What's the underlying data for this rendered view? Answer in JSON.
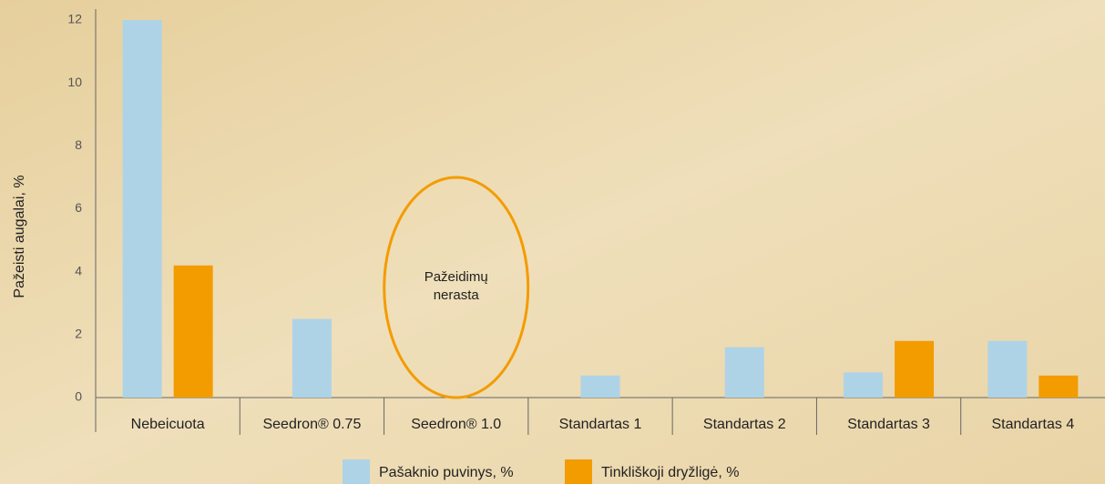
{
  "chart_data": {
    "type": "bar",
    "y_label": "Pažeisti augalai, %",
    "annotation": "Pažeidimų nerasta",
    "categories": [
      "Nebeicuota",
      "Seedron® 0.75",
      "Seedron® 1.0",
      "Standartas 1",
      "Standartas 2",
      "Standartas 3",
      "Standartas 4"
    ],
    "series": [
      {
        "name": "Pašaknio puvinys, %",
        "color": "#aed3e6",
        "values": [
          12,
          2.5,
          null,
          0.7,
          1.6,
          0.8,
          1.8
        ]
      },
      {
        "name": "Tinkliškoji dryžligė, %",
        "color": "#f39c00",
        "values": [
          4.2,
          null,
          null,
          null,
          null,
          1.8,
          0.7
        ]
      }
    ],
    "ylim": [
      0,
      12
    ],
    "yticks": [
      0,
      2,
      4,
      6,
      8,
      10,
      12
    ],
    "grid": false
  }
}
